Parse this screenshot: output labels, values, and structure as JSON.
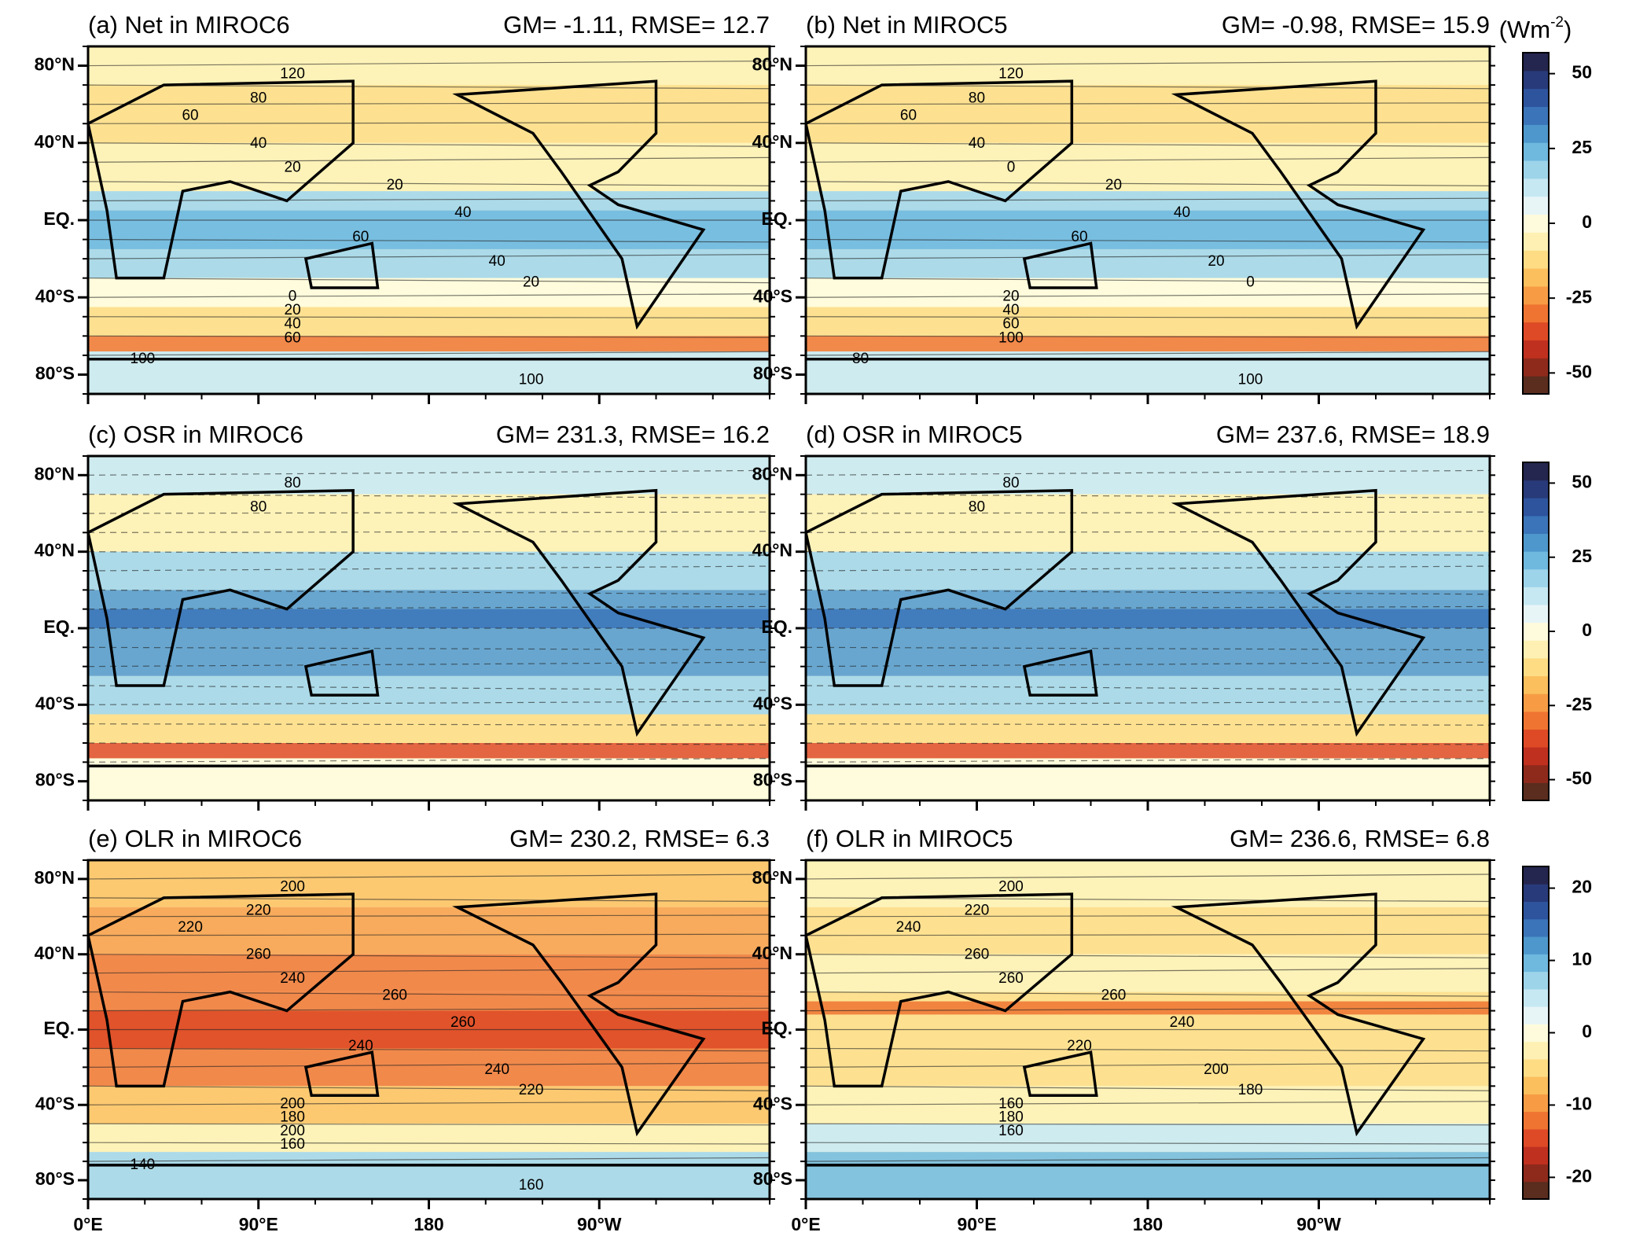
{
  "panels": [
    {
      "title": "(a) Net in MIROC6",
      "stats": "GM= -1.11, RMSE= 12.7",
      "contour_labels": [
        "120",
        "80",
        "60",
        "40",
        "20",
        "20",
        "40",
        "60",
        "40",
        "20",
        "0",
        "20",
        "40",
        "60",
        "100",
        "100"
      ]
    },
    {
      "title": "(b) Net in MIROC5",
      "stats": "GM= -0.98, RMSE= 15.9",
      "contour_labels": [
        "120",
        "80",
        "60",
        "40",
        "0",
        "20",
        "40",
        "60",
        "20",
        "0",
        "20",
        "40",
        "60",
        "100",
        "80",
        "100"
      ]
    },
    {
      "title": "(c) OSR in MIROC6",
      "stats": "GM= 231.3, RMSE= 16.2",
      "contour_labels": [
        "80",
        "80"
      ]
    },
    {
      "title": "(d) OSR in MIROC5",
      "stats": "GM= 237.6, RMSE= 18.9",
      "contour_labels": [
        "80",
        "80"
      ]
    },
    {
      "title": "(e) OLR in MIROC6",
      "stats": "GM= 230.2, RMSE= 6.3",
      "contour_labels": [
        "200",
        "220",
        "220",
        "260",
        "240",
        "260",
        "260",
        "240",
        "240",
        "220",
        "200",
        "180",
        "200",
        "160",
        "140",
        "160"
      ]
    },
    {
      "title": "(f) OLR in MIROC5",
      "stats": "GM= 236.6, RMSE= 6.8",
      "contour_labels": [
        "200",
        "220",
        "240",
        "260",
        "260",
        "260",
        "240",
        "220",
        "200",
        "180",
        "160",
        "180",
        "160"
      ]
    }
  ],
  "lat_ticks": [
    {
      "value": 80,
      "label": "80°N"
    },
    {
      "value": 40,
      "label": "40°N"
    },
    {
      "value": 0,
      "label": "EQ."
    },
    {
      "value": -40,
      "label": "40°S"
    },
    {
      "value": -80,
      "label": "80°S"
    }
  ],
  "lon_ticks": [
    {
      "value": 0,
      "label": "0°E"
    },
    {
      "value": 90,
      "label": "90°E"
    },
    {
      "value": 180,
      "label": "180"
    },
    {
      "value": 270,
      "label": "90°W"
    }
  ],
  "unit": {
    "open": "(Wm",
    "sup": "-2",
    "close": ")"
  },
  "colorbar_colors": [
    "#5a2d1e",
    "#8e2a1c",
    "#c0301f",
    "#de4a26",
    "#ef7431",
    "#f79c45",
    "#fbbf5e",
    "#fddc84",
    "#fdf0b2",
    "#fefbdc",
    "#e8f5f7",
    "#c6e8f2",
    "#9dd4ea",
    "#6fb8de",
    "#4d97cc",
    "#3b74b8",
    "#2e549e",
    "#283a7a",
    "#24264f"
  ],
  "colorbars": [
    {
      "lim": [
        -57,
        57
      ],
      "ticks": [
        50,
        25,
        0,
        -25,
        -50
      ]
    },
    {
      "lim": [
        -57,
        57
      ],
      "ticks": [
        50,
        25,
        0,
        -25,
        -50
      ]
    },
    {
      "lim": [
        -23,
        23
      ],
      "ticks": [
        20,
        10,
        0,
        -10,
        -20
      ]
    }
  ]
}
